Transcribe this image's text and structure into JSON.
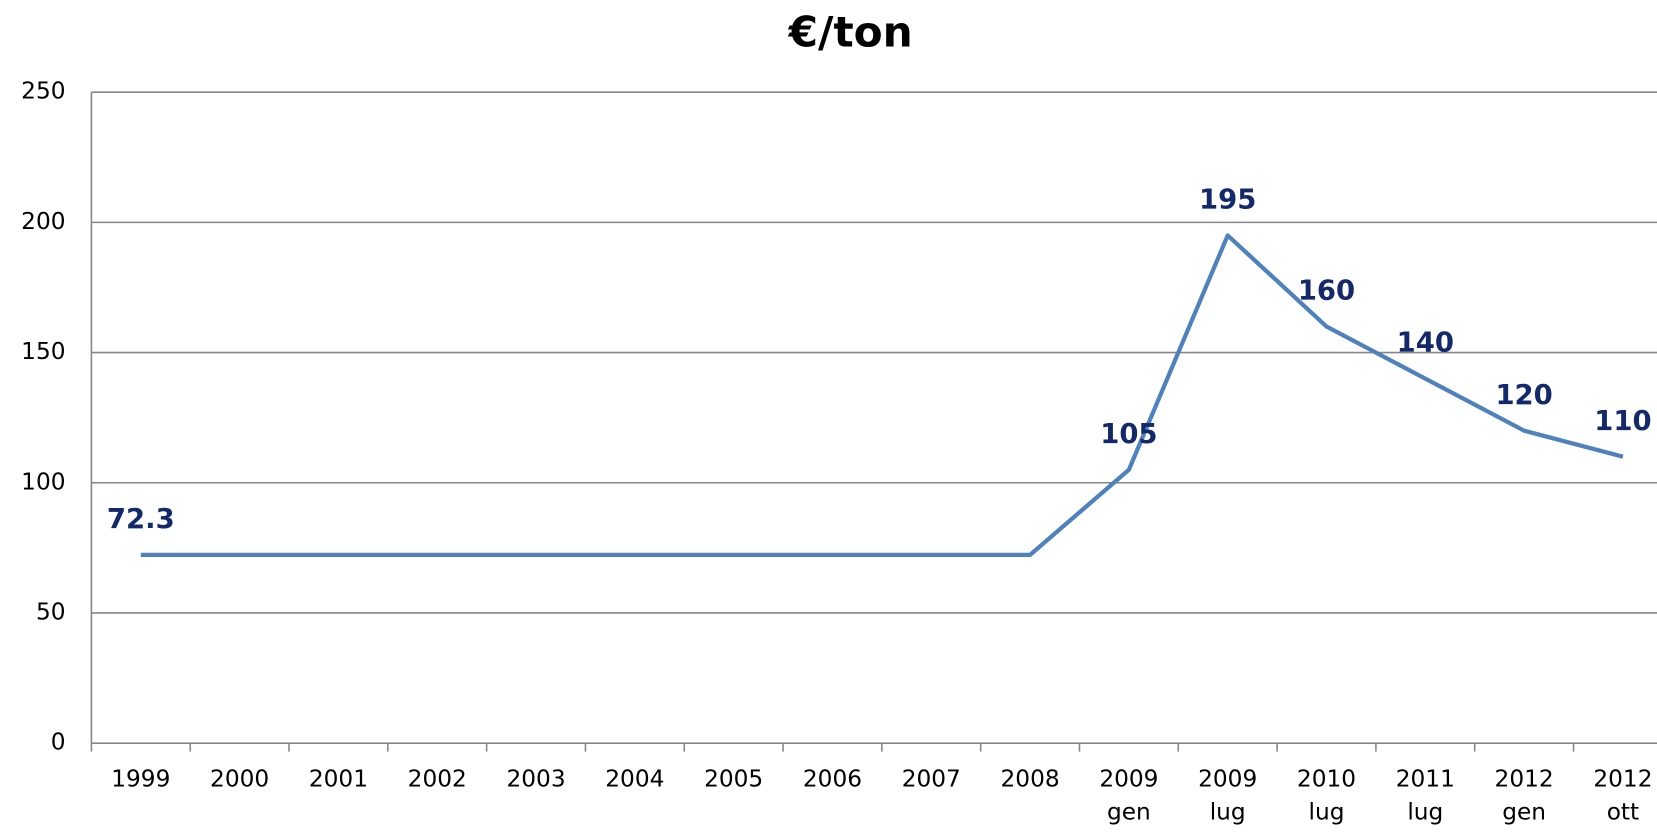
{
  "chart_data": {
    "type": "line",
    "title": "€/ton",
    "categories": [
      [
        "1999"
      ],
      [
        "2000"
      ],
      [
        "2001"
      ],
      [
        "2002"
      ],
      [
        "2003"
      ],
      [
        "2004"
      ],
      [
        "2005"
      ],
      [
        "2006"
      ],
      [
        "2007"
      ],
      [
        "2008"
      ],
      [
        "2009",
        "gen"
      ],
      [
        "2009",
        "lug"
      ],
      [
        "2010",
        "lug"
      ],
      [
        "2011",
        "lug"
      ],
      [
        "2012",
        "gen"
      ],
      [
        "2012",
        "ott"
      ]
    ],
    "values": [
      72.3,
      72.3,
      72.3,
      72.3,
      72.3,
      72.3,
      72.3,
      72.3,
      72.3,
      72.3,
      105,
      195,
      160,
      140,
      120,
      110
    ],
    "value_labels": [
      "72.3",
      null,
      null,
      null,
      null,
      null,
      null,
      null,
      null,
      null,
      "105",
      "195",
      "160",
      "140",
      "120",
      "110"
    ],
    "color": "#4f81bd",
    "label_color": "#13296b",
    "ylim": [
      0,
      250
    ],
    "yticks": [
      0,
      50,
      100,
      150,
      200,
      250
    ],
    "grid": true
  }
}
